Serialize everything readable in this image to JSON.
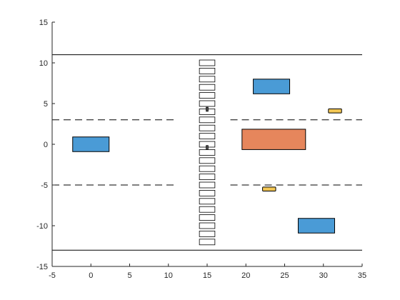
{
  "chart_data": {
    "type": "scatter",
    "title": "",
    "xlabel": "",
    "ylabel": "",
    "xlim": [
      -5,
      35
    ],
    "ylim": [
      -15,
      15
    ],
    "xticks": [
      -5,
      0,
      5,
      10,
      15,
      20,
      25,
      30,
      35
    ],
    "yticks": [
      -15,
      -10,
      -5,
      0,
      5,
      10,
      15
    ],
    "grid": false,
    "legend": "none",
    "box": "left-bottom axes only",
    "road": {
      "solid_lines_y": [
        11,
        -13
      ],
      "dashed_lanes": [
        {
          "y": 3,
          "x_segments": [
            [
              -5,
              11
            ],
            [
              18,
              35
            ]
          ]
        },
        {
          "y": -5,
          "x_segments": [
            [
              -5,
              11
            ],
            [
              18,
              35
            ]
          ]
        }
      ],
      "line_color": "#000000"
    },
    "crosswalk": {
      "x_range": [
        14,
        16
      ],
      "stripe_centers_y": [
        10,
        9,
        8,
        7,
        6,
        5,
        4,
        3,
        2,
        1,
        0,
        -1,
        -2,
        -3,
        -4,
        -5,
        -6,
        -7,
        -8,
        -9,
        -10,
        -11,
        -12
      ],
      "stripe_half_height": 0.35,
      "fill": "#ffffff"
    },
    "pedestrians": [
      {
        "x": 15,
        "y": 4.3,
        "w": 0.25,
        "h": 0.5
      },
      {
        "x": 15,
        "y": -0.4,
        "w": 0.25,
        "h": 0.5
      }
    ],
    "vehicles": [
      {
        "category": "car",
        "x": 0,
        "y": 0,
        "w": 4.7,
        "h": 1.8,
        "color": "#4a9bd6"
      },
      {
        "category": "car",
        "x": 23.3,
        "y": 7.1,
        "w": 4.7,
        "h": 1.8,
        "color": "#4a9bd6"
      },
      {
        "category": "car",
        "x": 29.1,
        "y": -10.0,
        "w": 4.7,
        "h": 1.8,
        "color": "#4a9bd6"
      },
      {
        "category": "truck",
        "x": 23.6,
        "y": 0.6,
        "w": 8.2,
        "h": 2.5,
        "color": "#e6865c"
      },
      {
        "category": "bicycle",
        "x": 31.5,
        "y": 4.1,
        "w": 1.7,
        "h": 0.5,
        "color": "#f2c654"
      },
      {
        "category": "bicycle",
        "x": 23.0,
        "y": -5.5,
        "w": 1.7,
        "h": 0.5,
        "color": "#f2c654"
      }
    ]
  }
}
